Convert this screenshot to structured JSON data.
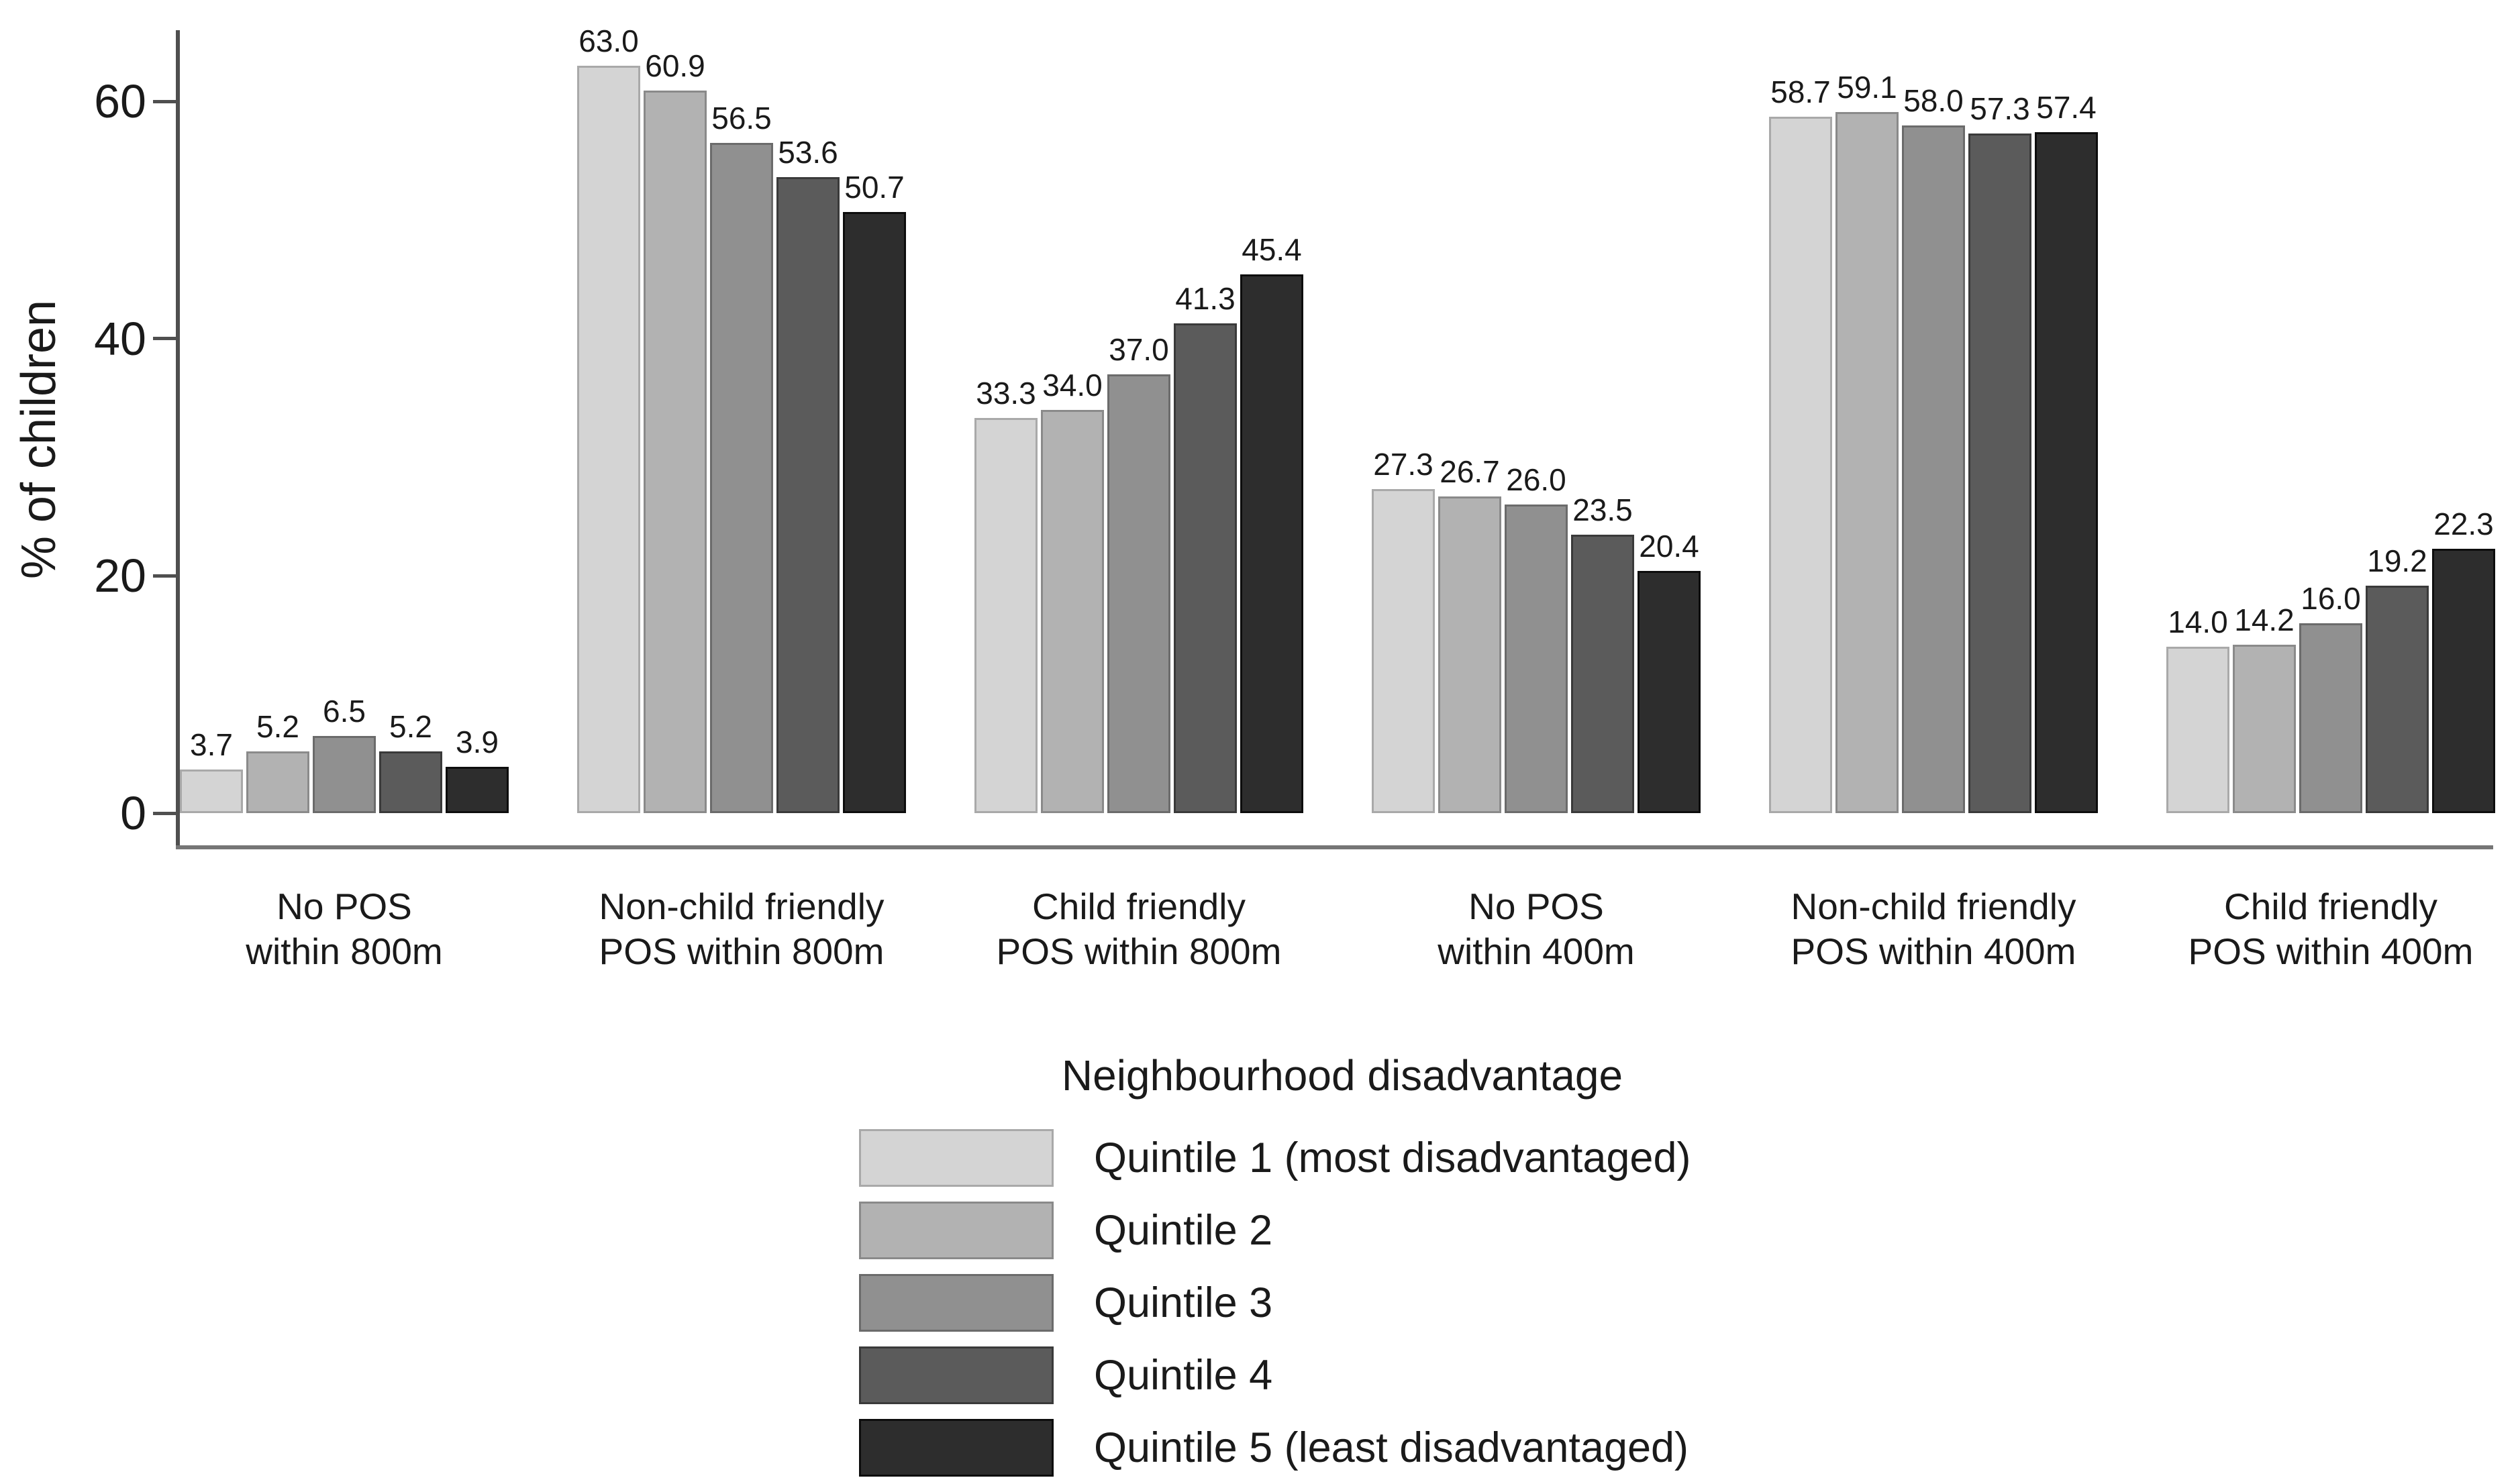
{
  "chart_data": {
    "type": "bar",
    "title": "",
    "ylabel": "% of children",
    "xlabel": "",
    "y_ticks": [
      0,
      20,
      40,
      60
    ],
    "ylim": [
      0,
      66
    ],
    "grid": false,
    "legend_position": "bottom-center",
    "legend_title": "Neighbourhood disadvantage",
    "categories": [
      {
        "line1": "No POS",
        "line2": "within 800m"
      },
      {
        "line1": "Non-child friendly",
        "line2": "POS within 800m"
      },
      {
        "line1": "Child friendly",
        "line2": "POS within 800m"
      },
      {
        "line1": "No POS",
        "line2": "within 400m"
      },
      {
        "line1": "Non-child friendly",
        "line2": "POS within 400m"
      },
      {
        "line1": "Child friendly",
        "line2": "POS within 400m"
      }
    ],
    "series": [
      {
        "name": "Quintile 1 (most disadvantaged)",
        "color": "#d4d4d4",
        "border_color": "#a9a9a9",
        "values": [
          3.7,
          63.0,
          33.3,
          27.3,
          58.7,
          14.0
        ]
      },
      {
        "name": "Quintile 2",
        "color": "#b2b2b2",
        "border_color": "#8a8a8a",
        "values": [
          5.2,
          60.9,
          34.0,
          26.7,
          59.1,
          14.2
        ]
      },
      {
        "name": "Quintile 3",
        "color": "#909090",
        "border_color": "#6b6b6b",
        "values": [
          6.5,
          56.5,
          37.0,
          26.0,
          58.0,
          16.0
        ]
      },
      {
        "name": "Quintile 4",
        "color": "#5b5b5b",
        "border_color": "#3a3a3a",
        "values": [
          5.2,
          53.6,
          41.3,
          23.5,
          57.3,
          19.2
        ]
      },
      {
        "name": "Quintile 5 (least disadvantaged)",
        "color": "#2d2d2d",
        "border_color": "#0d0d0d",
        "values": [
          3.9,
          50.7,
          45.4,
          20.4,
          57.4,
          22.3
        ]
      }
    ],
    "value_label_decimals": 1,
    "axis_color": "#4f4f4f",
    "frame_color": "#767676",
    "text_color": "#1a1a1a",
    "background_color": "#ffffff"
  }
}
